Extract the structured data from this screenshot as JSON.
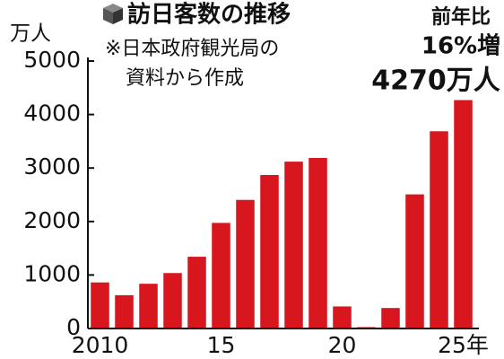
{
  "chart_data": {
    "type": "bar",
    "title": "訪日客数の推移",
    "note": [
      "※日本政府観光局の",
      "資料から作成"
    ],
    "annotation": [
      "前年比",
      "16%増",
      "4270万人"
    ],
    "y_label": "万人",
    "categories": [
      "2010",
      null,
      null,
      null,
      null,
      "15",
      null,
      null,
      null,
      null,
      "20",
      null,
      null,
      null,
      null,
      "25年"
    ],
    "values": [
      861,
      622,
      836,
      1036,
      1341,
      1974,
      2404,
      2869,
      3119,
      3188,
      412,
      25,
      383,
      2507,
      3687,
      4270
    ],
    "color": "#d7161d",
    "ylim": [
      0,
      5000
    ],
    "yticks": [
      0,
      1000,
      2000,
      3000,
      4000,
      5000
    ],
    "grid": false
  }
}
